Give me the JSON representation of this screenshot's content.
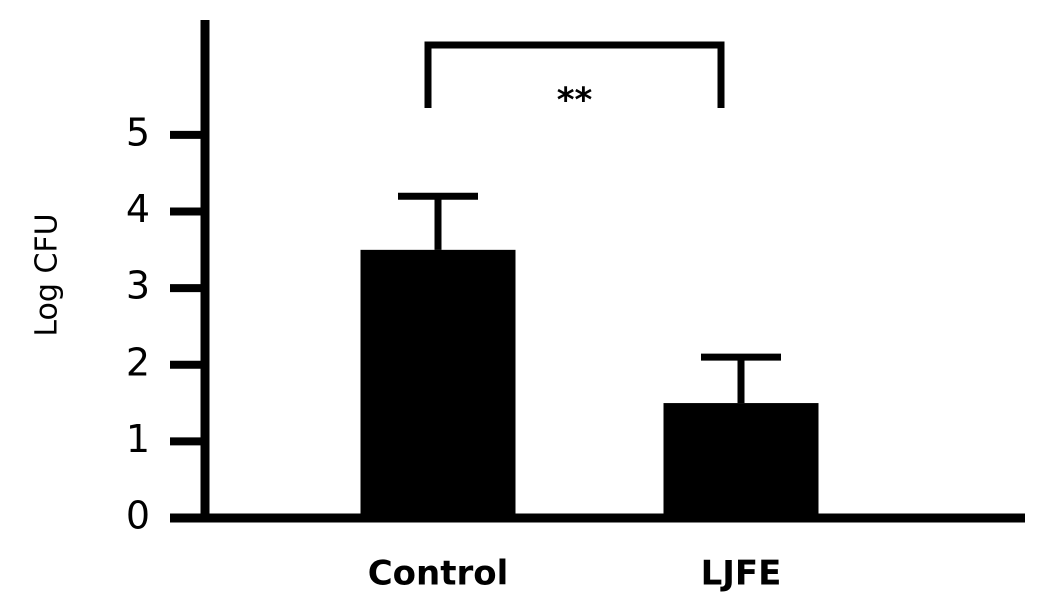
{
  "chart_data": {
    "type": "bar",
    "y_label": "Log CFU",
    "categories": [
      "Control",
      "LJFE"
    ],
    "values": [
      3.5,
      1.5
    ],
    "errors": [
      0.7,
      0.6
    ],
    "color": "#000000",
    "ylim": [
      0,
      6.5
    ],
    "yticks": [
      0,
      1,
      2,
      3,
      4,
      5
    ],
    "annotation": "**"
  }
}
